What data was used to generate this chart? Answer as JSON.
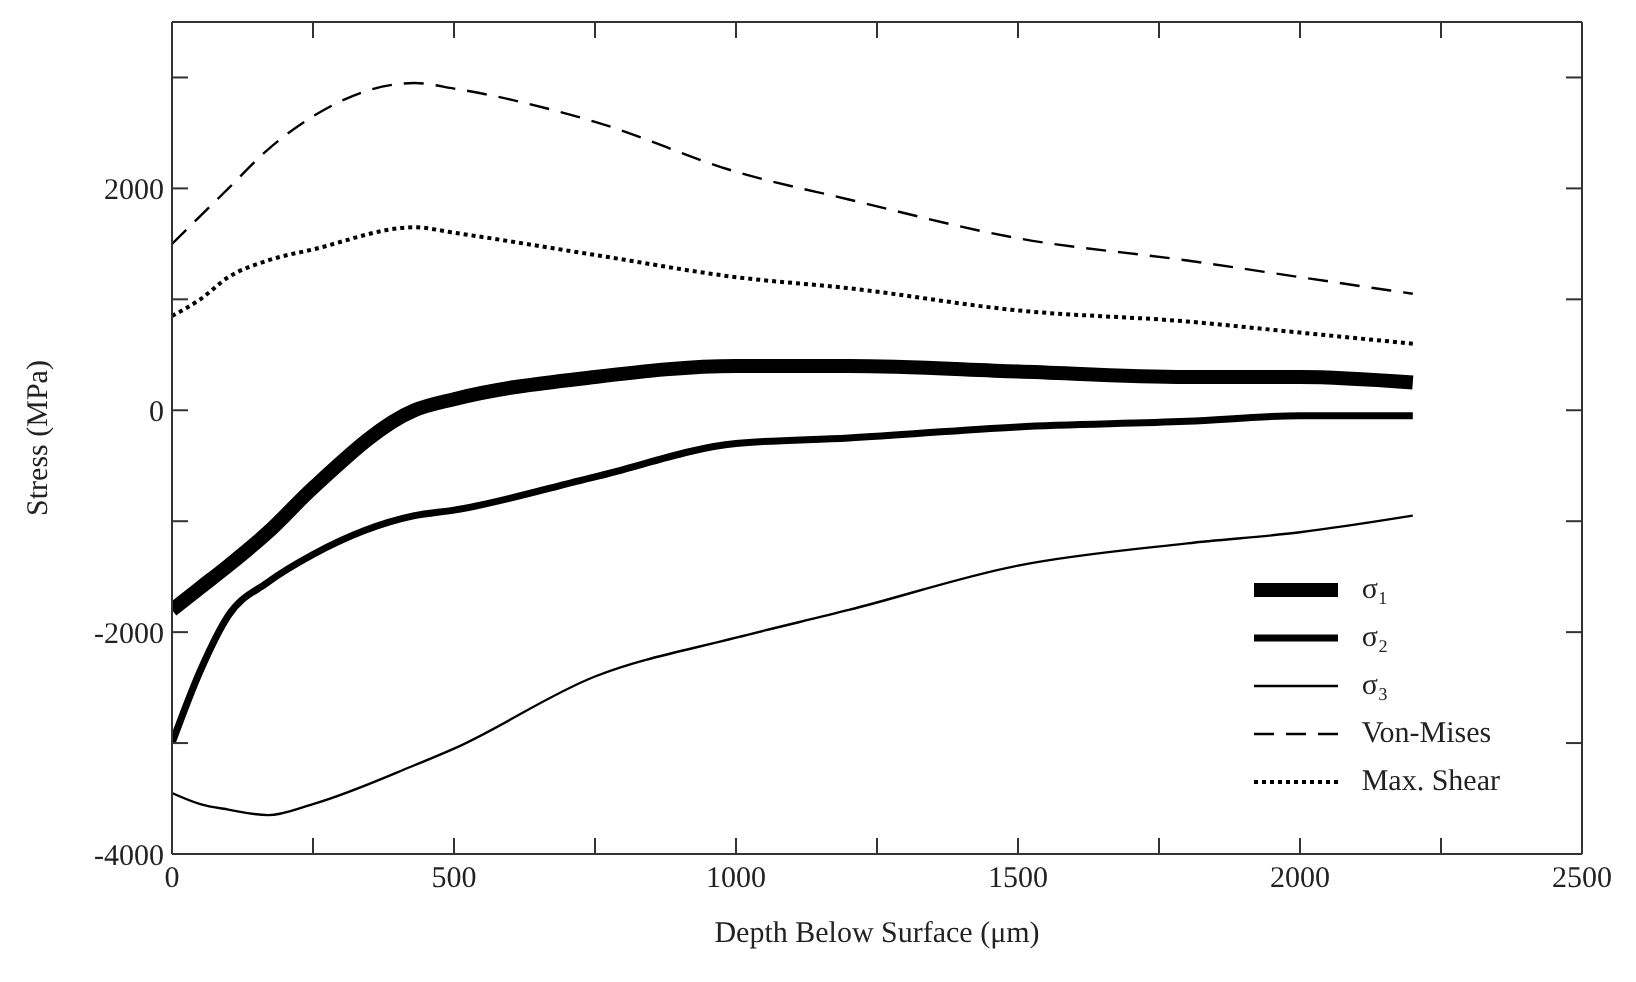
{
  "chart_data": {
    "type": "line",
    "xlabel": "Depth Below Surface (μm)",
    "ylabel": "Stress (MPa)",
    "xlim": [
      0,
      2500
    ],
    "xticks": [
      0,
      {
        "value": 250,
        "label": null
      },
      500,
      {
        "value": 750,
        "label": null
      },
      1000,
      {
        "value": 1250,
        "label": null
      },
      1500,
      {
        "value": 1750,
        "label": null
      },
      2000,
      {
        "value": 2250,
        "label": null
      },
      2500
    ],
    "ylim": [
      -4000,
      3500
    ],
    "yticks": [
      -4000,
      {
        "value": -3000,
        "label": null
      },
      -2000,
      {
        "value": -1000,
        "label": null
      },
      0,
      {
        "value": 1000,
        "label": null
      },
      2000,
      {
        "value": 3000,
        "label": null
      }
    ],
    "legend": "bottom right",
    "marker": "none",
    "x": [
      0,
      50,
      100,
      170,
      250,
      430,
      500,
      750,
      1000,
      1200,
      1500,
      1800,
      2000,
      2200
    ],
    "series": [
      {
        "name": "σ₁",
        "color": "#000000",
        "line_style": "solid",
        "values": [
          -1800,
          -1600,
          -1400,
          -1100,
          -700,
          0,
          100,
          300,
          400,
          400,
          350,
          300,
          300,
          250
        ]
      },
      {
        "name": "σ₂",
        "color": "#000000",
        "line_style": "solid",
        "values": [
          -3000,
          -2350,
          -1850,
          -1550,
          -1300,
          -950,
          -900,
          -600,
          -300,
          -250,
          -150,
          -100,
          -50,
          -50
        ]
      },
      {
        "name": "σ₃",
        "color": "#000000",
        "line_style": "solid",
        "values": [
          -3450,
          -3550,
          -3600,
          -3650,
          -3550,
          -3200,
          -3050,
          -2400,
          -2050,
          -1800,
          -1400,
          -1200,
          -1100,
          -950
        ]
      },
      {
        "name": "Von-Mises",
        "color": "#000000",
        "line_style": "dashed",
        "values": [
          1500,
          1750,
          2000,
          2350,
          2650,
          2950,
          2900,
          2600,
          2150,
          1900,
          1550,
          1350,
          1200,
          1050
        ]
      },
      {
        "name": "Max. Shear",
        "color": "#000000",
        "line_style": "dotted",
        "values": [
          850,
          1000,
          1200,
          1350,
          1450,
          1650,
          1600,
          1400,
          1200,
          1100,
          900,
          800,
          700,
          600
        ]
      }
    ]
  }
}
